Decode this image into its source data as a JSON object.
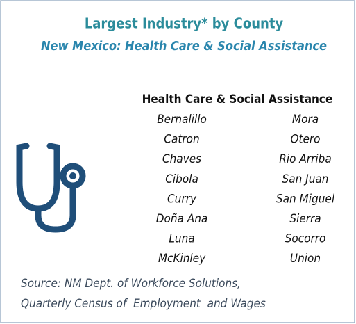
{
  "header": {
    "title": "Largest Industry* by County",
    "subtitle": "New Mexico: Health Care & Social Assistance"
  },
  "list": {
    "heading": "Health Care & Social Assistance",
    "columns": [
      [
        "Bernalillo",
        "Catron",
        "Chaves",
        "Cibola",
        "Curry",
        "Doña Ana",
        "Luna",
        "McKinley"
      ],
      [
        "Mora",
        "Otero",
        "Rio Arriba",
        "San Juan",
        "San Miguel",
        "Sierra",
        "Socorro",
        "Union"
      ]
    ]
  },
  "source": [
    "Source: NM Dept. of Workforce Solutions,",
    "Quarterly Census of  Employment  and Wages"
  ]
}
